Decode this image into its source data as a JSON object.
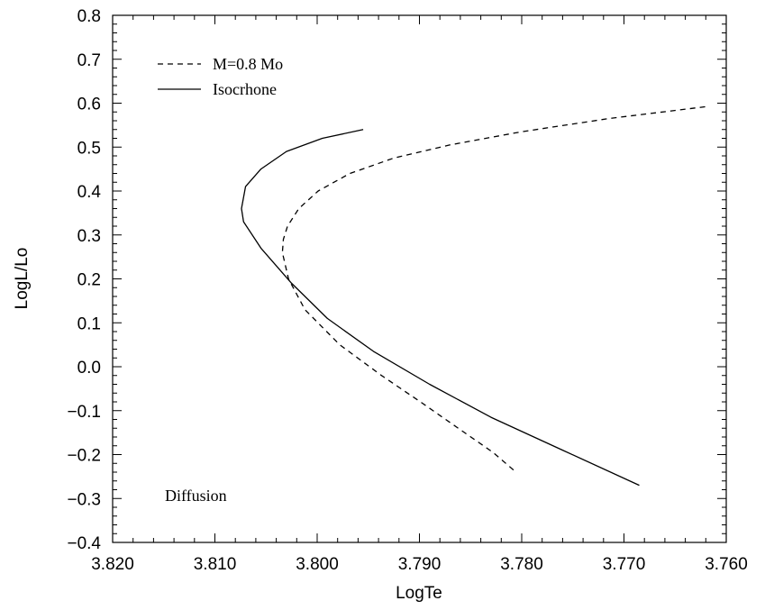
{
  "chart_data": {
    "type": "line",
    "xlabel": "LogTe",
    "ylabel": "LogL/Lo",
    "xlim": [
      3.82,
      3.76
    ],
    "ylim": [
      -0.4,
      0.8
    ],
    "x_reversed": true,
    "grid": false,
    "legend_placement": "top-left",
    "x_ticks": [
      3.82,
      3.81,
      3.8,
      3.79,
      3.78,
      3.77,
      3.76
    ],
    "x_tick_labels": [
      "3.820",
      "3.810",
      "3.800",
      "3.790",
      "3.780",
      "3.770",
      "3.760"
    ],
    "y_ticks": [
      0.8,
      0.7,
      0.6,
      0.5,
      0.4,
      0.3,
      0.2,
      0.1,
      0.0,
      -0.1,
      -0.2,
      -0.3,
      -0.4
    ],
    "y_tick_labels": [
      "0.8",
      "0.7",
      "0.6",
      "0.5",
      "0.4",
      "0.3",
      "0.2",
      "0.1",
      "0.0",
      "−0.1",
      "−0.2",
      "−0.3",
      "−0.4"
    ],
    "annotation": "Diffusion",
    "series": [
      {
        "name": "M=0.8 Mo",
        "style": "dashed",
        "x": [
          3.7808,
          3.7828,
          3.7862,
          3.7899,
          3.7937,
          3.7978,
          3.8012,
          3.8028,
          3.8034,
          3.8033,
          3.8029,
          3.8018,
          3.7999,
          3.7968,
          3.7925,
          3.787,
          3.78,
          3.7715,
          3.762
        ],
        "y": [
          -0.235,
          -0.195,
          -0.14,
          -0.08,
          -0.02,
          0.05,
          0.13,
          0.2,
          0.26,
          0.29,
          0.32,
          0.36,
          0.4,
          0.44,
          0.475,
          0.505,
          0.535,
          0.565,
          0.592
        ]
      },
      {
        "name": "Isocrhone",
        "style": "solid",
        "x": [
          3.7685,
          3.776,
          3.783,
          3.789,
          3.7945,
          3.799,
          3.8025,
          3.8055,
          3.8072,
          3.8074,
          3.807,
          3.8055,
          3.803,
          3.7995,
          3.7955
        ],
        "y": [
          -0.27,
          -0.19,
          -0.115,
          -0.04,
          0.035,
          0.11,
          0.19,
          0.27,
          0.33,
          0.36,
          0.41,
          0.45,
          0.49,
          0.52,
          0.54
        ]
      }
    ]
  },
  "colors": {
    "line": "#000000",
    "background": "#ffffff"
  }
}
